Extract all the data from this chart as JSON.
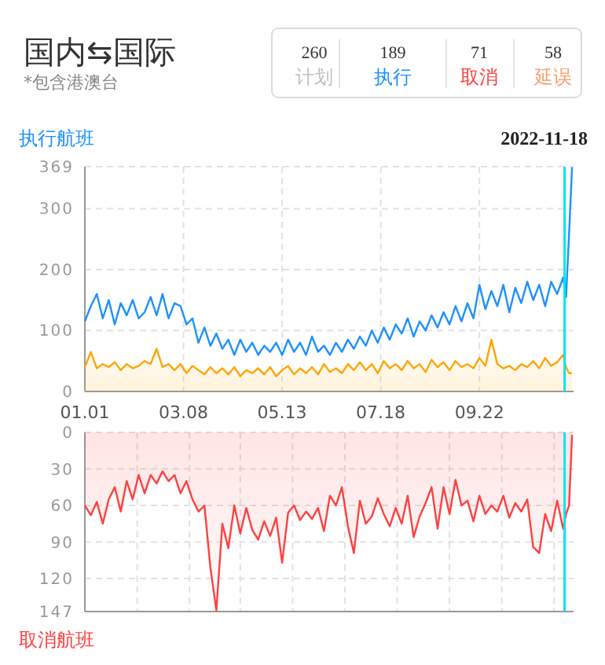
{
  "chart_data": [
    {
      "type": "other",
      "title": "国内⇆国际",
      "subtitle": "*包含港澳台",
      "categories": [
        "计划",
        "执行",
        "取消",
        "延误"
      ],
      "values": [
        260,
        189,
        71,
        58
      ],
      "data_labels": true
    },
    {
      "type": "line",
      "title": "执行航班",
      "annotations": [
        "2022-11-18"
      ],
      "grid": true,
      "xlim": [
        "--01-01",
        "--11-24"
      ],
      "xticks": [
        {
          "value": "--01-01",
          "label": "01.01"
        },
        {
          "value": "--03-08",
          "label": "03.08"
        },
        {
          "value": "--05-13",
          "label": "05.13"
        },
        {
          "value": "--07-18",
          "label": "07.18"
        },
        {
          "value": "--09-22",
          "label": "09.22"
        }
      ],
      "ylim": [
        0,
        369
      ],
      "yticks": [
        0,
        100,
        200,
        300,
        369
      ],
      "x": [
        "--01-01",
        "--01-05",
        "--01-09",
        "--01-13",
        "--01-17",
        "--01-21",
        "--01-25",
        "--01-29",
        "--02-02",
        "--02-06",
        "--02-10",
        "--02-14",
        "--02-18",
        "--02-22",
        "--02-26",
        "--03-02",
        "--03-06",
        "--03-10",
        "--03-14",
        "--03-18",
        "--03-22",
        "--03-26",
        "--03-30",
        "--04-03",
        "--04-07",
        "--04-11",
        "--04-15",
        "--04-19",
        "--04-23",
        "--04-27",
        "--05-01",
        "--05-05",
        "--05-09",
        "--05-13",
        "--05-17",
        "--05-21",
        "--05-25",
        "--05-29",
        "--06-02",
        "--06-06",
        "--06-10",
        "--06-14",
        "--06-18",
        "--06-22",
        "--06-26",
        "--06-30",
        "--07-04",
        "--07-08",
        "--07-12",
        "--07-16",
        "--07-20",
        "--07-24",
        "--07-28",
        "--08-01",
        "--08-05",
        "--08-09",
        "--08-13",
        "--08-17",
        "--08-21",
        "--08-25",
        "--08-29",
        "--09-02",
        "--09-06",
        "--09-10",
        "--09-14",
        "--09-18",
        "--09-22",
        "--09-26",
        "--09-30",
        "--10-04",
        "--10-08",
        "--10-12",
        "--10-16",
        "--10-20",
        "--10-24",
        "--10-28",
        "--11-01",
        "--11-05",
        "--11-09",
        "--11-13",
        "--11-17",
        "--11-19",
        "--11-21",
        "--11-23"
      ],
      "series": [
        {
          "type": "line",
          "color": "#1e90ff",
          "values": [
            115,
            140,
            160,
            120,
            150,
            110,
            145,
            125,
            150,
            120,
            130,
            155,
            125,
            160,
            120,
            145,
            140,
            110,
            120,
            80,
            105,
            75,
            95,
            70,
            85,
            60,
            85,
            65,
            80,
            60,
            75,
            65,
            80,
            60,
            85,
            65,
            80,
            60,
            90,
            65,
            75,
            60,
            80,
            65,
            85,
            70,
            90,
            75,
            100,
            80,
            105,
            85,
            110,
            95,
            120,
            90,
            115,
            100,
            125,
            105,
            130,
            110,
            140,
            115,
            145,
            120,
            175,
            135,
            165,
            140,
            175,
            130,
            170,
            145,
            180,
            150,
            175,
            140,
            180,
            160,
            187,
            155,
            260,
            368
          ]
        },
        {
          "type": "area",
          "color": "#ffa500",
          "values": [
            40,
            65,
            38,
            45,
            40,
            48,
            35,
            45,
            38,
            42,
            50,
            45,
            70,
            40,
            45,
            35,
            45,
            30,
            42,
            35,
            28,
            40,
            30,
            38,
            28,
            40,
            25,
            35,
            30,
            38,
            28,
            40,
            25,
            35,
            42,
            28,
            38,
            30,
            40,
            28,
            45,
            32,
            38,
            30,
            45,
            35,
            48,
            35,
            45,
            30,
            50,
            38,
            45,
            35,
            50,
            38,
            45,
            32,
            52,
            40,
            48,
            35,
            50,
            40,
            45,
            38,
            55,
            42,
            85,
            45,
            38,
            42,
            35,
            45,
            40,
            50,
            38,
            55,
            42,
            48,
            60,
            40,
            30,
            30
          ]
        }
      ],
      "ref_lines": [
        {
          "axis": "x",
          "value": "--11-18",
          "color": "#00e5ee"
        }
      ]
    },
    {
      "type": "area",
      "title": "取消航班",
      "grid": true,
      "tick_labels": "y",
      "xlim": [
        "--01-01",
        "--11-24"
      ],
      "xticks": [
        {
          "value": "--02-05",
          "label": null
        },
        {
          "value": "--03-12",
          "label": null
        },
        {
          "value": "--04-15",
          "label": null
        },
        {
          "value": "--05-20",
          "label": null
        },
        {
          "value": "--06-24",
          "label": null
        },
        {
          "value": "--07-29",
          "label": null
        },
        {
          "value": "--09-02",
          "label": null
        },
        {
          "value": "--10-07",
          "label": null
        },
        {
          "value": "--11-11",
          "label": null
        }
      ],
      "ylim": [
        147,
        0
      ],
      "yticks": [
        0,
        30,
        60,
        90,
        120,
        147
      ],
      "x": [
        "--01-01",
        "--01-05",
        "--01-09",
        "--01-13",
        "--01-17",
        "--01-21",
        "--01-25",
        "--01-29",
        "--02-02",
        "--02-06",
        "--02-10",
        "--02-14",
        "--02-18",
        "--02-22",
        "--02-26",
        "--03-02",
        "--03-06",
        "--03-10",
        "--03-14",
        "--03-18",
        "--03-22",
        "--03-26",
        "--03-30",
        "--04-03",
        "--04-07",
        "--04-11",
        "--04-15",
        "--04-19",
        "--04-23",
        "--04-27",
        "--05-01",
        "--05-05",
        "--05-09",
        "--05-13",
        "--05-17",
        "--05-21",
        "--05-25",
        "--05-29",
        "--06-02",
        "--06-06",
        "--06-10",
        "--06-14",
        "--06-18",
        "--06-22",
        "--06-26",
        "--06-30",
        "--07-04",
        "--07-08",
        "--07-12",
        "--07-16",
        "--07-20",
        "--07-24",
        "--07-28",
        "--08-01",
        "--08-05",
        "--08-09",
        "--08-13",
        "--08-17",
        "--08-21",
        "--08-25",
        "--08-29",
        "--09-02",
        "--09-06",
        "--09-10",
        "--09-14",
        "--09-18",
        "--09-22",
        "--09-26",
        "--09-30",
        "--10-04",
        "--10-08",
        "--10-12",
        "--10-16",
        "--10-20",
        "--10-24",
        "--10-28",
        "--11-01",
        "--11-05",
        "--11-09",
        "--11-13",
        "--11-17",
        "--11-19",
        "--11-21",
        "--11-23"
      ],
      "series": [
        {
          "color": "#ff4040",
          "values": [
            60,
            68,
            57,
            75,
            55,
            45,
            65,
            40,
            55,
            35,
            50,
            35,
            42,
            32,
            40,
            35,
            50,
            40,
            55,
            65,
            60,
            111,
            146,
            75,
            95,
            60,
            83,
            62,
            80,
            88,
            73,
            85,
            70,
            107,
            66,
            60,
            72,
            65,
            71,
            62,
            81,
            52,
            60,
            45,
            77,
            99,
            56,
            75,
            69,
            54,
            67,
            77,
            62,
            75,
            52,
            86,
            69,
            58,
            45,
            79,
            45,
            67,
            39,
            60,
            56,
            73,
            52,
            67,
            60,
            65,
            52,
            70,
            58,
            65,
            55,
            94,
            99,
            67,
            81,
            56,
            79,
            67,
            60,
            2
          ]
        }
      ],
      "ref_lines": [
        {
          "axis": "x",
          "value": "--11-18",
          "color": "#00e5ee"
        }
      ]
    }
  ]
}
